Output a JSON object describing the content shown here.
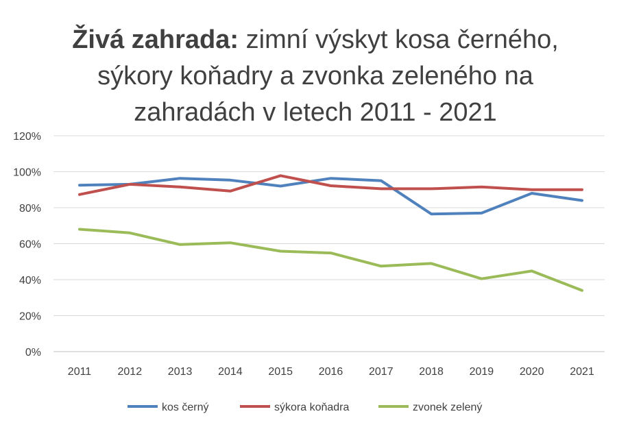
{
  "chart_data": {
    "type": "line",
    "title_bold": "Živá zahrada:",
    "title_rest": " zimní výskyt kosa černého, sýkory koňadry a zvonka zeleného na zahradách v letech 2011 - 2021",
    "categories": [
      "2011",
      "2012",
      "2013",
      "2014",
      "2015",
      "2016",
      "2017",
      "2018",
      "2019",
      "2020",
      "2021"
    ],
    "ylim": [
      0,
      120
    ],
    "yticks": [
      0,
      20,
      40,
      60,
      80,
      100,
      120
    ],
    "ytick_labels": [
      "0%",
      "20%",
      "40%",
      "60%",
      "80%",
      "100%",
      "120%"
    ],
    "grid": true,
    "legend_position": "bottom",
    "series": [
      {
        "name": "kos černý",
        "color": "#4f81bd",
        "values": [
          92.5,
          93,
          96.3,
          95.3,
          92,
          96.3,
          95,
          76.5,
          77,
          88,
          84
        ]
      },
      {
        "name": "sýkora koňadra",
        "color": "#c0504d",
        "values": [
          87.3,
          93,
          91.5,
          89.2,
          97.8,
          92.2,
          90.5,
          90.5,
          91.5,
          90,
          90
        ]
      },
      {
        "name": "zvonek zelený",
        "color": "#9bbb59",
        "values": [
          68,
          66,
          59.5,
          60.5,
          55.8,
          54.8,
          47.5,
          49,
          40.5,
          44.8,
          34
        ]
      }
    ]
  }
}
